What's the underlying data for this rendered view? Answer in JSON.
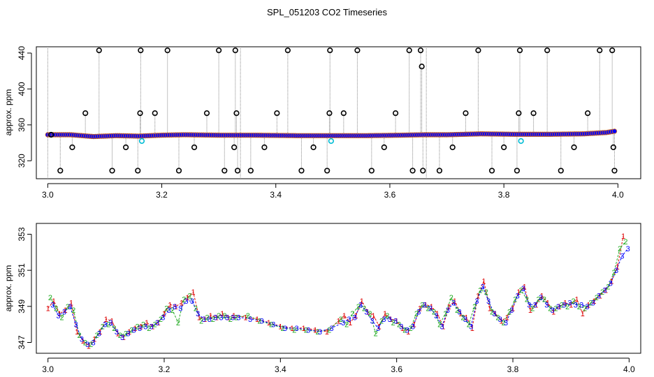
{
  "title": "SPL_051203  CO2 Timeseries",
  "colors": {
    "main_points": "#0000ff",
    "point_edge_orange": "#d2691e",
    "outlier_points": "#000000",
    "flagged_points": "#00bcd4",
    "drop_lines": "#888888",
    "mark_1": "#dd0000",
    "mark_2": "#22aa22",
    "mark_3": "#0000ff",
    "line_red": "#dd0000",
    "line_green": "#22aa22",
    "line_blue": "#0000ff"
  },
  "chart_data": [
    {
      "type": "scatter",
      "title": "SPL_051203  CO2 Timeseries",
      "xlabel": "",
      "ylabel": "approx. ppm",
      "xlim": [
        2.98,
        4.04
      ],
      "ylim": [
        300,
        447
      ],
      "x_ticks": [
        3.0,
        3.2,
        3.4,
        3.6,
        3.8,
        4.0
      ],
      "x_tick_labels": [
        "3.0",
        "3.2",
        "3.4",
        "3.6",
        "3.8",
        "4.0"
      ],
      "y_ticks": [
        320,
        360,
        400,
        440
      ],
      "y_tick_labels": [
        "320",
        "360",
        "400",
        "440"
      ],
      "baseline_knots": {
        "x": [
          3.0,
          3.04,
          3.08,
          3.12,
          3.16,
          3.2,
          3.24,
          3.3,
          3.36,
          3.44,
          3.5,
          3.56,
          3.62,
          3.66,
          3.7,
          3.76,
          3.82,
          3.88,
          3.94,
          3.98,
          3.995
        ],
        "y": [
          349,
          349,
          347,
          348,
          347.5,
          348.5,
          349,
          348.5,
          348.5,
          348,
          348,
          348,
          348.5,
          349,
          349,
          350,
          349.5,
          349.5,
          350,
          351.5,
          353
        ]
      },
      "sample_step": 0.0035,
      "outliers": {
        "x": [
          3.006,
          3.022,
          3.043,
          3.066,
          3.09,
          3.113,
          3.137,
          3.158,
          3.162,
          3.163,
          3.188,
          3.21,
          3.23,
          3.257,
          3.279,
          3.3,
          3.31,
          3.327,
          3.329,
          3.331,
          3.333,
          3.356,
          3.38,
          3.402,
          3.421,
          3.445,
          3.466,
          3.49,
          3.494,
          3.495,
          3.519,
          3.543,
          3.568,
          3.59,
          3.61,
          3.634,
          3.64,
          3.654,
          3.656,
          3.658,
          3.687,
          3.71,
          3.733,
          3.755,
          3.779,
          3.8,
          3.823,
          3.826,
          3.828,
          3.852,
          3.876,
          3.9,
          3.923,
          3.947,
          3.968,
          3.99,
          3.992,
          3.994
        ],
        "y": [
          349,
          309,
          335,
          373,
          443,
          309,
          335,
          309,
          373,
          443,
          373,
          443,
          309,
          335,
          373,
          443,
          309,
          335,
          443,
          373,
          309,
          309,
          335,
          373,
          443,
          309,
          335,
          309,
          373,
          443,
          373,
          443,
          309,
          335,
          373,
          443,
          309,
          443,
          425,
          309,
          309,
          335,
          373,
          443,
          309,
          335,
          309,
          373,
          443,
          373,
          443,
          309,
          335,
          373,
          443,
          443,
          335,
          309
        ]
      },
      "flagged": {
        "x": [
          3.165,
          3.497,
          3.83
        ],
        "y": [
          342,
          342,
          342
        ]
      }
    },
    {
      "type": "line",
      "title": "",
      "xlabel": "",
      "ylabel": "approx. ppm",
      "xlim": [
        2.98,
        4.02
      ],
      "ylim": [
        346.4,
        353.6
      ],
      "x_ticks": [
        3.0,
        3.2,
        3.4,
        3.6,
        3.8,
        4.0
      ],
      "x_tick_labels": [
        "3.0",
        "3.2",
        "3.4",
        "3.6",
        "3.8",
        "4.0"
      ],
      "y_ticks": [
        347,
        349,
        351,
        353
      ],
      "y_tick_labels": [
        "347",
        "349",
        "351",
        "353"
      ],
      "series": [
        {
          "name": "1",
          "symbol": "1",
          "x": [
            3.0,
            3.01,
            3.02,
            3.03,
            3.04,
            3.05,
            3.06,
            3.07,
            3.08,
            3.09,
            3.1,
            3.11,
            3.12,
            3.13,
            3.14,
            3.15,
            3.16,
            3.17,
            3.18,
            3.19,
            3.2,
            3.21,
            3.22,
            3.23,
            3.24,
            3.25,
            3.26,
            3.27,
            3.28,
            3.29,
            3.3,
            3.31,
            3.32,
            3.34,
            3.36,
            3.38,
            3.4,
            3.42,
            3.44,
            3.46,
            3.48,
            3.5,
            3.51,
            3.52,
            3.53,
            3.54,
            3.55,
            3.56,
            3.57,
            3.58,
            3.59,
            3.6,
            3.61,
            3.62,
            3.63,
            3.64,
            3.65,
            3.66,
            3.67,
            3.68,
            3.69,
            3.7,
            3.71,
            3.72,
            3.73,
            3.74,
            3.75,
            3.76,
            3.77,
            3.78,
            3.79,
            3.8,
            3.81,
            3.82,
            3.83,
            3.84,
            3.85,
            3.86,
            3.87,
            3.88,
            3.89,
            3.9,
            3.91,
            3.92,
            3.93,
            3.94,
            3.95,
            3.96,
            3.97,
            3.98,
            3.99
          ],
          "y": [
            348.9,
            349.3,
            348.6,
            348.8,
            349.2,
            347.6,
            347.1,
            346.8,
            347.2,
            347.6,
            348.3,
            348.2,
            347.5,
            347.3,
            347.6,
            347.8,
            347.9,
            348.1,
            347.9,
            348.1,
            348.6,
            349.1,
            349.0,
            349.2,
            349.5,
            349.8,
            348.4,
            348.3,
            348.5,
            348.4,
            348.6,
            348.4,
            348.5,
            348.4,
            348.3,
            348.1,
            347.9,
            347.8,
            347.8,
            347.7,
            347.6,
            348.2,
            348.5,
            348.1,
            348.5,
            349.3,
            348.7,
            348.5,
            347.9,
            348.6,
            348.3,
            348.2,
            347.8,
            347.6,
            348.0,
            348.9,
            349.1,
            349.0,
            348.6,
            347.9,
            349.0,
            349.3,
            348.6,
            348.4,
            347.8,
            349.6,
            350.4,
            348.9,
            348.6,
            348.2,
            348.4,
            348.9,
            349.8,
            350.1,
            348.8,
            349.1,
            349.6,
            349.2,
            348.7,
            349.0,
            349.2,
            349.1,
            349.4,
            348.6,
            349.1,
            349.3,
            349.6,
            349.9,
            350.4,
            351.2,
            352.9
          ]
        },
        {
          "name": "2",
          "symbol": "2",
          "x": [
            3.004,
            3.014,
            3.024,
            3.034,
            3.044,
            3.054,
            3.064,
            3.074,
            3.084,
            3.094,
            3.104,
            3.114,
            3.124,
            3.134,
            3.144,
            3.154,
            3.164,
            3.174,
            3.184,
            3.194,
            3.204,
            3.214,
            3.224,
            3.234,
            3.244,
            3.254,
            3.264,
            3.274,
            3.284,
            3.294,
            3.304,
            3.314,
            3.324,
            3.344,
            3.364,
            3.384,
            3.404,
            3.424,
            3.444,
            3.464,
            3.484,
            3.504,
            3.514,
            3.524,
            3.534,
            3.544,
            3.554,
            3.564,
            3.574,
            3.584,
            3.594,
            3.604,
            3.614,
            3.624,
            3.634,
            3.644,
            3.654,
            3.664,
            3.674,
            3.684,
            3.694,
            3.704,
            3.714,
            3.724,
            3.734,
            3.744,
            3.754,
            3.764,
            3.774,
            3.784,
            3.794,
            3.804,
            3.814,
            3.824,
            3.834,
            3.844,
            3.854,
            3.864,
            3.874,
            3.884,
            3.894,
            3.904,
            3.914,
            3.924,
            3.934,
            3.944,
            3.954,
            3.964,
            3.974,
            3.984,
            3.994
          ],
          "y": [
            349.5,
            348.9,
            348.4,
            349.0,
            348.8,
            347.4,
            347.0,
            346.9,
            347.4,
            347.9,
            348.0,
            347.8,
            347.4,
            347.5,
            347.7,
            347.9,
            348.0,
            347.8,
            348.0,
            348.3,
            348.9,
            348.8,
            348.1,
            349.4,
            349.6,
            348.9,
            348.2,
            348.4,
            348.3,
            348.5,
            348.5,
            348.3,
            348.4,
            348.5,
            348.2,
            348.0,
            347.8,
            347.7,
            347.7,
            347.6,
            347.7,
            348.3,
            348.0,
            348.6,
            349.0,
            348.9,
            348.6,
            347.5,
            348.2,
            348.5,
            348.1,
            348.0,
            347.7,
            347.8,
            348.6,
            349.1,
            348.9,
            348.7,
            348.0,
            348.6,
            349.5,
            348.8,
            348.4,
            348.0,
            349.0,
            349.9,
            349.8,
            348.7,
            348.4,
            348.1,
            348.7,
            349.4,
            349.9,
            349.4,
            348.9,
            349.4,
            349.4,
            348.9,
            348.9,
            349.1,
            349.0,
            349.3,
            349.0,
            348.9,
            349.2,
            349.5,
            349.8,
            350.1,
            350.9,
            352.2,
            352.6
          ]
        },
        {
          "name": "3",
          "symbol": "3",
          "x": [
            3.008,
            3.018,
            3.028,
            3.038,
            3.048,
            3.058,
            3.068,
            3.078,
            3.088,
            3.098,
            3.108,
            3.118,
            3.128,
            3.138,
            3.148,
            3.158,
            3.168,
            3.178,
            3.188,
            3.198,
            3.208,
            3.218,
            3.228,
            3.238,
            3.248,
            3.258,
            3.268,
            3.278,
            3.288,
            3.298,
            3.308,
            3.318,
            3.328,
            3.348,
            3.368,
            3.388,
            3.408,
            3.428,
            3.448,
            3.468,
            3.488,
            3.508,
            3.518,
            3.528,
            3.538,
            3.548,
            3.558,
            3.568,
            3.578,
            3.588,
            3.598,
            3.608,
            3.618,
            3.628,
            3.638,
            3.648,
            3.658,
            3.668,
            3.678,
            3.688,
            3.698,
            3.708,
            3.718,
            3.728,
            3.738,
            3.748,
            3.758,
            3.768,
            3.778,
            3.788,
            3.798,
            3.808,
            3.818,
            3.828,
            3.838,
            3.848,
            3.858,
            3.868,
            3.878,
            3.888,
            3.898,
            3.908,
            3.918,
            3.928,
            3.938,
            3.948,
            3.958,
            3.968,
            3.978,
            3.988,
            3.998
          ],
          "y": [
            349.1,
            348.5,
            348.7,
            349.0,
            348.0,
            347.2,
            346.9,
            347.0,
            347.5,
            348.0,
            348.1,
            347.6,
            347.3,
            347.5,
            347.7,
            347.8,
            347.9,
            347.9,
            348.1,
            348.4,
            348.8,
            349.0,
            348.9,
            349.3,
            349.3,
            348.6,
            348.3,
            348.3,
            348.4,
            348.4,
            348.4,
            348.4,
            348.4,
            348.3,
            348.2,
            348.0,
            347.8,
            347.8,
            347.7,
            347.6,
            347.8,
            348.1,
            348.3,
            348.4,
            349.1,
            348.7,
            348.2,
            347.8,
            348.3,
            348.3,
            348.2,
            347.9,
            347.7,
            347.9,
            348.7,
            349.1,
            348.9,
            348.5,
            347.9,
            348.8,
            349.2,
            348.7,
            348.3,
            347.9,
            349.3,
            350.1,
            349.3,
            348.6,
            348.3,
            348.1,
            348.8,
            349.6,
            350.0,
            349.1,
            349.1,
            349.5,
            349.1,
            348.8,
            349.0,
            349.1,
            349.2,
            349.1,
            349.1,
            349.0,
            349.2,
            349.6,
            349.9,
            350.3,
            351.0,
            351.8,
            352.2
          ]
        }
      ]
    }
  ]
}
